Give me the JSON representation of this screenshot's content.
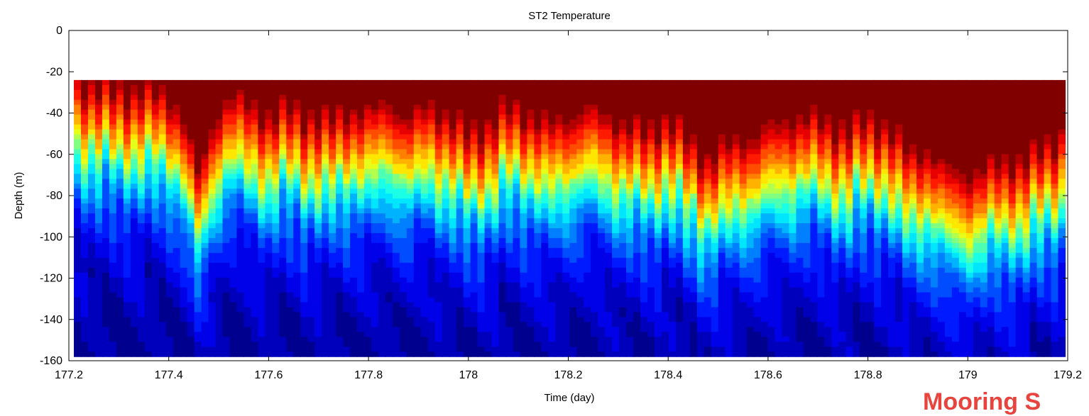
{
  "chart_data": {
    "type": "heatmap",
    "title": "ST2 Temperature",
    "xlabel": "Time (day)",
    "ylabel": "Depth (m)",
    "xlim": [
      177.2,
      179.2
    ],
    "ylim": [
      -160,
      0
    ],
    "x_ticks": [
      177.2,
      177.4,
      177.6,
      177.8,
      178,
      178.2,
      178.4,
      178.6,
      178.8,
      179,
      179.2
    ],
    "y_ticks": [
      0,
      -20,
      -40,
      -60,
      -80,
      -100,
      -120,
      -140,
      -160
    ],
    "data_depth_range": [
      -158,
      -24
    ],
    "colormap": "jet",
    "colormap_colors": [
      "#00008f",
      "#0000ff",
      "#0080ff",
      "#00ffff",
      "#80ff80",
      "#ffff00",
      "#ff8000",
      "#ff0000",
      "#800000"
    ],
    "thermocline_depth_profile": {
      "x": [
        177.21,
        177.25,
        177.3,
        177.35,
        177.4,
        177.43,
        177.46,
        177.49,
        177.52,
        177.56,
        177.6,
        177.64,
        177.68,
        177.72,
        177.76,
        177.8,
        177.84,
        177.88,
        177.92,
        177.96,
        178.0,
        178.04,
        178.08,
        178.12,
        178.16,
        178.2,
        178.24,
        178.28,
        178.32,
        178.36,
        178.4,
        178.44,
        178.48,
        178.52,
        178.56,
        178.6,
        178.64,
        178.68,
        178.72,
        178.76,
        178.8,
        178.84,
        178.88,
        178.92,
        178.96,
        179.0,
        179.04,
        179.08,
        179.12,
        179.16,
        179.2
      ],
      "y": [
        -52,
        -55,
        -58,
        -57,
        -60,
        -70,
        -100,
        -72,
        -60,
        -64,
        -70,
        -66,
        -70,
        -72,
        -66,
        -68,
        -62,
        -72,
        -64,
        -70,
        -78,
        -74,
        -66,
        -68,
        -74,
        -70,
        -66,
        -70,
        -74,
        -78,
        -70,
        -82,
        -90,
        -84,
        -80,
        -76,
        -72,
        -70,
        -74,
        -76,
        -72,
        -74,
        -88,
        -86,
        -96,
        -98,
        -94,
        -92,
        -90,
        -84,
        -76
      ]
    }
  },
  "watermark": {
    "text": "Mooring S"
  }
}
